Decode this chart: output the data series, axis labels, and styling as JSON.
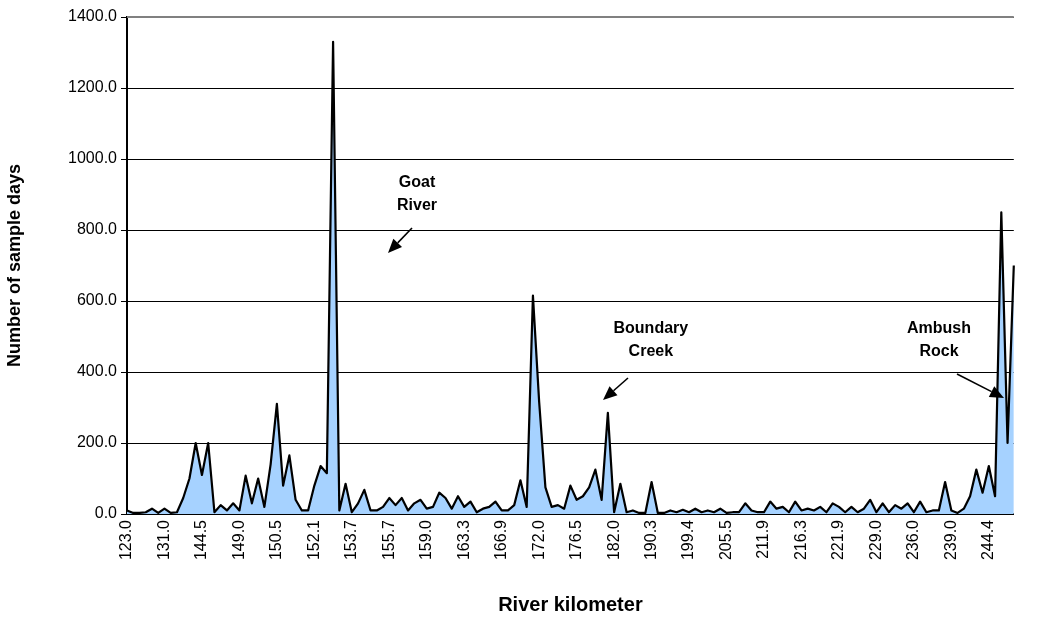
{
  "chart_data": {
    "type": "area",
    "xlabel": "River kilometer",
    "ylabel": "Number of sample days",
    "categories": [
      "123.0",
      null,
      null,
      null,
      null,
      null,
      "131.0",
      null,
      null,
      null,
      null,
      null,
      "144.5",
      null,
      null,
      null,
      null,
      null,
      "149.0",
      null,
      null,
      null,
      null,
      null,
      "150.5",
      null,
      null,
      null,
      null,
      null,
      "152.1",
      null,
      null,
      null,
      null,
      null,
      "153.7",
      null,
      null,
      null,
      null,
      null,
      "155.7",
      null,
      null,
      null,
      null,
      null,
      "159.0",
      null,
      null,
      null,
      null,
      null,
      "163.3",
      null,
      null,
      null,
      null,
      null,
      "166.9",
      null,
      null,
      null,
      null,
      null,
      "172.0",
      null,
      null,
      null,
      null,
      null,
      "176.5",
      null,
      null,
      null,
      null,
      null,
      "182.0",
      null,
      null,
      null,
      null,
      null,
      "190.3",
      null,
      null,
      null,
      null,
      null,
      "199.4",
      null,
      null,
      null,
      null,
      null,
      "205.5",
      null,
      null,
      null,
      null,
      null,
      "211.9",
      null,
      null,
      null,
      null,
      null,
      "216.3",
      null,
      null,
      null,
      null,
      null,
      "221.9",
      null,
      null,
      null,
      null,
      null,
      "229.0",
      null,
      null,
      null,
      null,
      null,
      "236.0",
      null,
      null,
      null,
      null,
      null,
      "239.0",
      null,
      null,
      null,
      null,
      null,
      "244.4",
      null,
      null,
      null,
      null
    ],
    "series": [
      {
        "color": "#a6d2ff",
        "values": [
          10,
          3,
          3,
          5,
          15,
          3,
          15,
          3,
          5,
          45,
          100,
          200,
          110,
          200,
          5,
          25,
          10,
          30,
          10,
          108,
          30,
          100,
          20,
          140,
          310,
          80,
          165,
          40,
          10,
          10,
          80,
          135,
          115,
          1330,
          10,
          85,
          5,
          30,
          68,
          10,
          10,
          20,
          45,
          25,
          45,
          10,
          30,
          40,
          15,
          20,
          60,
          45,
          15,
          50,
          20,
          35,
          5,
          15,
          20,
          35,
          10,
          10,
          25,
          95,
          20,
          615,
          315,
          75,
          20,
          25,
          15,
          80,
          40,
          50,
          75,
          125,
          40,
          285,
          5,
          85,
          5,
          10,
          3,
          3,
          90,
          3,
          3,
          10,
          5,
          12,
          5,
          15,
          5,
          10,
          5,
          15,
          3,
          5,
          5,
          30,
          10,
          5,
          5,
          35,
          15,
          20,
          5,
          35,
          10,
          15,
          10,
          20,
          5,
          30,
          20,
          5,
          20,
          5,
          15,
          40,
          5,
          30,
          5,
          25,
          15,
          30,
          5,
          35,
          5,
          10,
          10,
          90,
          10,
          3,
          15,
          50,
          125,
          60,
          135,
          50,
          850,
          200,
          700
        ]
      }
    ],
    "ylim": [
      0,
      1400
    ],
    "yticks": [
      {
        "value": 0,
        "label": "0.0"
      },
      {
        "value": 200,
        "label": "200.0"
      },
      {
        "value": 400,
        "label": "400.0"
      },
      {
        "value": 600,
        "label": "600.0"
      },
      {
        "value": 800,
        "label": "800.0"
      },
      {
        "value": 1000,
        "label": "1000.0"
      },
      {
        "value": 1200,
        "label": "1200.0"
      },
      {
        "value": 1400,
        "label": "1400.0"
      }
    ],
    "grid": "y",
    "legend": false,
    "marker": "none",
    "line_style": "solid",
    "annotations": [
      "Goat River",
      "Boundary Creek",
      "Ambush Rock"
    ]
  }
}
